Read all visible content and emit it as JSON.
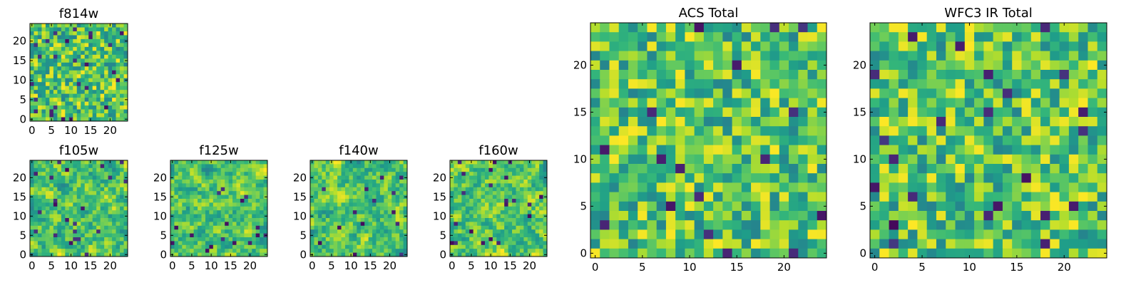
{
  "chart_data": [
    {
      "id": "f814w",
      "type": "heatmap",
      "title": "f814w",
      "grid_size": [
        25,
        25
      ],
      "xlim": [
        0,
        24
      ],
      "ylim": [
        0,
        24
      ],
      "xticks": [
        0,
        5,
        10,
        15,
        20
      ],
      "yticks": [
        0,
        5,
        10,
        15,
        20
      ],
      "colormap": "viridis",
      "texture": "pixel-scale noise",
      "seed": 11
    },
    {
      "id": "f105w",
      "type": "heatmap",
      "title": "f105w",
      "grid_size": [
        25,
        25
      ],
      "xlim": [
        0,
        24
      ],
      "ylim": [
        0,
        24
      ],
      "xticks": [
        0,
        5,
        10,
        15,
        20
      ],
      "yticks": [
        0,
        5,
        10,
        15,
        20
      ],
      "colormap": "viridis",
      "texture": "smoothed noise",
      "seed": 23
    },
    {
      "id": "f125w",
      "type": "heatmap",
      "title": "f125w",
      "grid_size": [
        25,
        25
      ],
      "xlim": [
        0,
        24
      ],
      "ylim": [
        0,
        24
      ],
      "xticks": [
        0,
        5,
        10,
        15,
        20
      ],
      "yticks": [
        0,
        5,
        10,
        15,
        20
      ],
      "colormap": "viridis",
      "texture": "smoothed noise",
      "seed": 37
    },
    {
      "id": "f140w",
      "type": "heatmap",
      "title": "f140w",
      "grid_size": [
        25,
        25
      ],
      "xlim": [
        0,
        24
      ],
      "ylim": [
        0,
        24
      ],
      "xticks": [
        0,
        5,
        10,
        15,
        20
      ],
      "yticks": [
        0,
        5,
        10,
        15,
        20
      ],
      "colormap": "viridis",
      "texture": "smoothed noise",
      "seed": 41
    },
    {
      "id": "f160w",
      "type": "heatmap",
      "title": "f160w",
      "grid_size": [
        25,
        25
      ],
      "xlim": [
        0,
        24
      ],
      "ylim": [
        0,
        24
      ],
      "xticks": [
        0,
        5,
        10,
        15,
        20
      ],
      "yticks": [
        0,
        5,
        10,
        15,
        20
      ],
      "colormap": "viridis",
      "texture": "smoothed noise",
      "seed": 53
    },
    {
      "id": "acs_total",
      "type": "heatmap",
      "title": "ACS Total",
      "grid_size": [
        25,
        25
      ],
      "xlim": [
        0,
        24
      ],
      "ylim": [
        0,
        24
      ],
      "xticks": [
        0,
        5,
        10,
        15,
        20
      ],
      "yticks": [
        0,
        5,
        10,
        15,
        20
      ],
      "colormap": "viridis",
      "texture": "pixel-scale noise",
      "seed": 67
    },
    {
      "id": "wfc3_ir_total",
      "type": "heatmap",
      "title": "WFC3 IR Total",
      "grid_size": [
        25,
        25
      ],
      "xlim": [
        0,
        24
      ],
      "ylim": [
        0,
        24
      ],
      "xticks": [
        0,
        5,
        10,
        15,
        20
      ],
      "yticks": [
        0,
        5,
        10,
        15,
        20
      ],
      "colormap": "viridis",
      "texture": "pixel-scale noise",
      "seed": 79
    }
  ]
}
